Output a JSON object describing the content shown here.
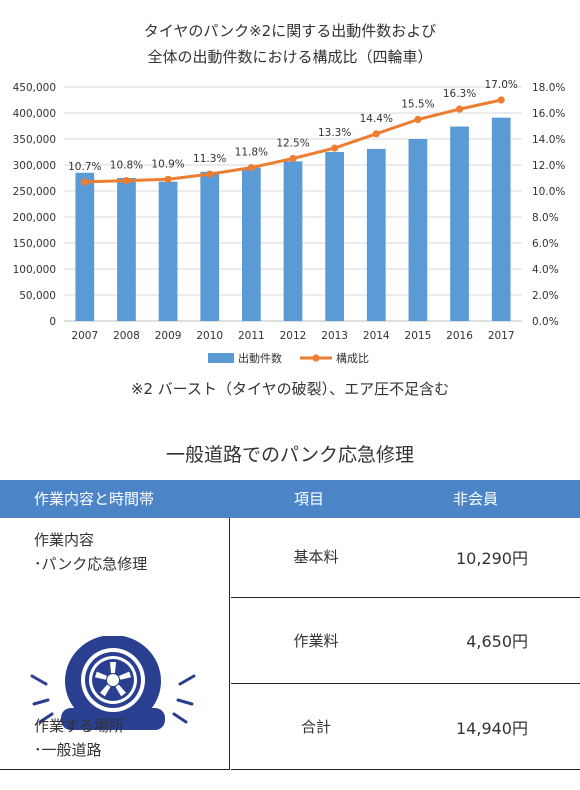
{
  "chart_data": {
    "type": "bar",
    "title_line1": "タイヤのパンク※2に関する出動件数および",
    "title_line2": "全体の出動件数における構成比（四輪車）",
    "categories": [
      "2007",
      "2008",
      "2009",
      "2010",
      "2011",
      "2012",
      "2013",
      "2014",
      "2015",
      "2016",
      "2017"
    ],
    "series": [
      {
        "name": "出動件数",
        "type": "bar",
        "axis": "left",
        "color": "#5b9bd5",
        "values": [
          285000,
          275000,
          268000,
          287000,
          295000,
          307000,
          325000,
          331000,
          350000,
          374000,
          391000
        ]
      },
      {
        "name": "構成比",
        "type": "line",
        "axis": "right",
        "color": "#ed7d31",
        "values": [
          10.7,
          10.8,
          10.9,
          11.3,
          11.8,
          12.5,
          13.3,
          14.4,
          15.5,
          16.3,
          17.0
        ],
        "labels": [
          "10.7%",
          "10.8%",
          "10.9%",
          "11.3%",
          "11.8%",
          "12.5%",
          "13.3%",
          "14.4%",
          "15.5%",
          "16.3%",
          "17.0%"
        ]
      }
    ],
    "ylim_left": [
      0,
      450000
    ],
    "ylim_right": [
      0,
      18
    ],
    "left_ticks": [
      "0",
      "50,000",
      "100,000",
      "150,000",
      "200,000",
      "250,000",
      "300,000",
      "350,000",
      "400,000",
      "450,000"
    ],
    "right_ticks": [
      "0.0%",
      "2.0%",
      "4.0%",
      "6.0%",
      "8.0%",
      "10.0%",
      "12.0%",
      "14.0%",
      "16.0%",
      "18.0%"
    ],
    "grid": true,
    "legend_position": "bottom"
  },
  "footnote": "※2 バースト（タイヤの破裂）、エア圧不足含む",
  "section_title": "一般道路でのパンク応急修理",
  "table": {
    "headers": [
      "作業内容と時間帯",
      "項目",
      "非会員"
    ],
    "left": {
      "line1": "作業内容",
      "line2": "･パンク応急修理",
      "line3": "作業する場所",
      "line4": "･一般道路"
    },
    "rows": [
      {
        "item": "基本料",
        "price": "10,290円"
      },
      {
        "item": "作業料",
        "price": "4,650円"
      },
      {
        "item": "合計",
        "price": "14,940円"
      }
    ]
  },
  "colors": {
    "header_bg": "#4b85c8",
    "bar": "#5b9bd5",
    "line": "#ed7d31",
    "tire": "#2a3f8f"
  }
}
